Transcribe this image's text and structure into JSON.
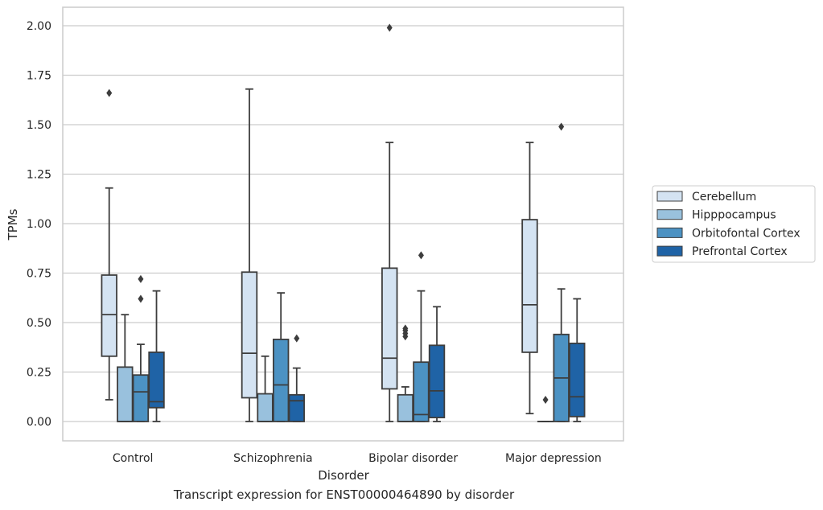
{
  "caption": "Transcript expression for ENST00000464890 by disorder",
  "chart_data": {
    "type": "box",
    "xlabel": "Disorder",
    "ylabel": "TPMs",
    "ylim": [
      -0.1,
      2.1
    ],
    "yticks": [
      0.0,
      0.25,
      0.5,
      0.75,
      1.0,
      1.25,
      1.5,
      1.75,
      2.0
    ],
    "ytick_labels": [
      "0.00",
      "0.25",
      "0.50",
      "0.75",
      "1.00",
      "1.25",
      "1.50",
      "1.75",
      "2.00"
    ],
    "grid": true,
    "legend_position": "right",
    "categories": [
      "Control",
      "Schizophrenia",
      "Bipolar disorder",
      "Major depression"
    ],
    "series": [
      {
        "name": "Cerebellum",
        "color": "#d4e3f2",
        "boxes": [
          {
            "whisker_low": 0.11,
            "q1": 0.33,
            "median": 0.54,
            "q3": 0.74,
            "whisker_high": 1.18,
            "outliers": [
              1.66
            ]
          },
          {
            "whisker_low": 0.0,
            "q1": 0.12,
            "median": 0.345,
            "q3": 0.755,
            "whisker_high": 1.68,
            "outliers": []
          },
          {
            "whisker_low": 0.0,
            "q1": 0.165,
            "median": 0.32,
            "q3": 0.775,
            "whisker_high": 1.41,
            "outliers": [
              1.99
            ]
          },
          {
            "whisker_low": 0.04,
            "q1": 0.35,
            "median": 0.59,
            "q3": 1.02,
            "whisker_high": 1.41,
            "outliers": []
          }
        ]
      },
      {
        "name": "Hipppocampus",
        "color": "#99c1dd",
        "boxes": [
          {
            "whisker_low": 0.0,
            "q1": 0.0,
            "median": 0.0,
            "q3": 0.275,
            "whisker_high": 0.54,
            "outliers": []
          },
          {
            "whisker_low": 0.0,
            "q1": 0.0,
            "median": 0.0,
            "q3": 0.14,
            "whisker_high": 0.33,
            "outliers": []
          },
          {
            "whisker_low": 0.0,
            "q1": 0.0,
            "median": 0.0,
            "q3": 0.135,
            "whisker_high": 0.175,
            "outliers": [
              0.43,
              0.445,
              0.46,
              0.47
            ]
          },
          {
            "whisker_low": 0.0,
            "q1": 0.0,
            "median": 0.0,
            "q3": 0.0,
            "whisker_high": 0.0,
            "outliers": [
              0.11
            ]
          }
        ]
      },
      {
        "name": "Orbitofontal Cortex",
        "color": "#4c92c3",
        "boxes": [
          {
            "whisker_low": 0.0,
            "q1": 0.0,
            "median": 0.15,
            "q3": 0.235,
            "whisker_high": 0.39,
            "outliers": [
              0.62,
              0.72
            ]
          },
          {
            "whisker_low": 0.0,
            "q1": 0.0,
            "median": 0.185,
            "q3": 0.415,
            "whisker_high": 0.65,
            "outliers": []
          },
          {
            "whisker_low": 0.0,
            "q1": 0.0,
            "median": 0.035,
            "q3": 0.3,
            "whisker_high": 0.66,
            "outliers": [
              0.84
            ]
          },
          {
            "whisker_low": 0.0,
            "q1": 0.0,
            "median": 0.22,
            "q3": 0.44,
            "whisker_high": 0.67,
            "outliers": [
              1.49
            ]
          }
        ]
      },
      {
        "name": "Prefrontal Cortex",
        "color": "#1f63a6",
        "boxes": [
          {
            "whisker_low": 0.0,
            "q1": 0.07,
            "median": 0.1,
            "q3": 0.35,
            "whisker_high": 0.66,
            "outliers": []
          },
          {
            "whisker_low": 0.0,
            "q1": 0.0,
            "median": 0.105,
            "q3": 0.135,
            "whisker_high": 0.27,
            "outliers": [
              0.42
            ]
          },
          {
            "whisker_low": 0.0,
            "q1": 0.02,
            "median": 0.155,
            "q3": 0.385,
            "whisker_high": 0.58,
            "outliers": []
          },
          {
            "whisker_low": 0.0,
            "q1": 0.025,
            "median": 0.125,
            "q3": 0.395,
            "whisker_high": 0.62,
            "outliers": []
          }
        ]
      }
    ]
  }
}
